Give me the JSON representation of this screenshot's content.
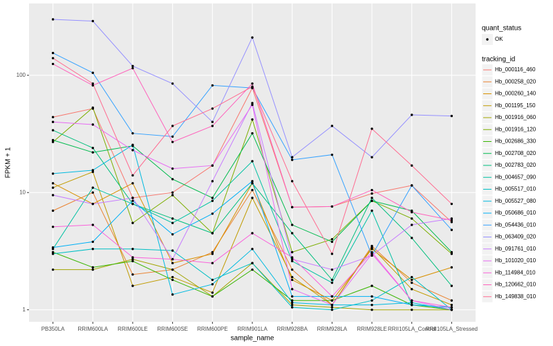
{
  "chart_data": {
    "type": "line",
    "x_label": "sample_name",
    "y_label": "FPKM + 1",
    "categories": [
      "PB350LA",
      "RRIM600LA",
      "RRIM600LE",
      "RRIM600SE",
      "RRIM600PE",
      "RRIM901LA",
      "RRIM928BA",
      "RRIM928LA",
      "RRIM928LE",
      "RRII105LA_Control",
      "RRII105LA_Stressed"
    ],
    "log_y": true,
    "ylim": [
      0.79,
      410
    ],
    "yticks": [
      1,
      10,
      100
    ],
    "grid": true,
    "shape_legend": {
      "title": "quant_status",
      "labels": [
        "OK"
      ]
    },
    "legend_title": "tracking_id",
    "series": [
      {
        "name": "Hb_000116_460",
        "color": "#F8766D",
        "values": [
          44,
          52,
          9,
          10,
          17,
          78,
          7.5,
          7.6,
          9.8,
          11.5,
          5.6
        ]
      },
      {
        "name": "Hb_000258_020",
        "color": "#EA8331",
        "values": [
          7,
          10,
          2,
          2.2,
          3.1,
          10.5,
          2.2,
          1.1,
          3.5,
          1.7,
          1.2
        ]
      },
      {
        "name": "Hb_000260_140",
        "color": "#D89000",
        "values": [
          12,
          8,
          12,
          2.5,
          3,
          12,
          1.8,
          1.2,
          3.3,
          1.8,
          2.3
        ]
      },
      {
        "name": "Hb_001195_150",
        "color": "#C09B00",
        "values": [
          11,
          15,
          1.6,
          1.9,
          1.4,
          9,
          1.9,
          1.1,
          3.4,
          1.5,
          1.1
        ]
      },
      {
        "name": "Hb_001916_060",
        "color": "#A3A500",
        "values": [
          2.2,
          2.2,
          2.7,
          2.2,
          1.3,
          2.5,
          1.1,
          1.05,
          1,
          1,
          1
        ]
      },
      {
        "name": "Hb_001916_120",
        "color": "#7CAE00",
        "values": [
          27,
          53,
          5.5,
          9.5,
          4.5,
          42,
          3.1,
          4,
          8.5,
          6,
          3
        ]
      },
      {
        "name": "Hb_002686_330",
        "color": "#39B600",
        "values": [
          3.1,
          2.3,
          2.6,
          1.8,
          1.3,
          2.2,
          1.2,
          1.2,
          1.6,
          1.1,
          1
        ]
      },
      {
        "name": "Hb_002708_020",
        "color": "#00BB4E",
        "values": [
          28,
          22,
          25,
          13,
          9,
          32,
          5.3,
          3.8,
          8.5,
          7,
          3.1
        ]
      },
      {
        "name": "Hb_002783_020",
        "color": "#00BF7D",
        "values": [
          34,
          24,
          8,
          6,
          4.5,
          12,
          4.5,
          1.8,
          9,
          4.1,
          1.6
        ]
      },
      {
        "name": "Hb_004657_090",
        "color": "#00C1A3",
        "values": [
          3.3,
          11,
          8,
          5.5,
          8.5,
          18.5,
          2.6,
          1.7,
          7,
          1.1,
          1.05
        ]
      },
      {
        "name": "Hb_005517_010",
        "color": "#00BFC4",
        "values": [
          3,
          3.3,
          3.3,
          3.2,
          1.8,
          2.5,
          1.05,
          1,
          1.2,
          1.9,
          1
        ]
      },
      {
        "name": "Hb_005527_080",
        "color": "#00BAE0",
        "values": [
          14.5,
          15.5,
          25.5,
          1.35,
          1.65,
          3.3,
          1.15,
          1.1,
          1.1,
          1.15,
          1
        ]
      },
      {
        "name": "Hb_050686_010",
        "color": "#00B0F6",
        "values": [
          3.4,
          3.8,
          8.5,
          4.4,
          6.6,
          12.5,
          1.3,
          1.3,
          1.3,
          1.1,
          1.05
        ]
      },
      {
        "name": "Hb_054436_010",
        "color": "#35A2FF",
        "values": [
          155,
          105,
          32,
          30,
          82,
          78,
          19,
          21,
          2.9,
          11.5,
          4.8
        ]
      },
      {
        "name": "Hb_063409_020",
        "color": "#9590FF",
        "values": [
          300,
          290,
          120,
          85,
          40,
          210,
          20,
          37,
          20,
          46,
          45
        ]
      },
      {
        "name": "Hb_091761_010",
        "color": "#C77CFF",
        "values": [
          9.5,
          8,
          9,
          2.7,
          12.5,
          58,
          2.7,
          2.2,
          2.9,
          5.3,
          6
        ]
      },
      {
        "name": "Hb_101020_010",
        "color": "#E76BF3",
        "values": [
          40,
          38,
          23,
          16,
          17,
          56,
          1.5,
          1.1,
          3,
          1.2,
          1
        ]
      },
      {
        "name": "Hb_114984_010",
        "color": "#FA62DB",
        "values": [
          5.1,
          5.3,
          2.8,
          2.7,
          2.5,
          4.5,
          2.8,
          1.3,
          3.1,
          1.2,
          1.05
        ]
      },
      {
        "name": "Hb_120662_010",
        "color": "#FF62BC",
        "values": [
          125,
          82,
          115,
          27,
          37,
          85,
          7.5,
          7.6,
          10.5,
          6.8,
          5.8
        ]
      },
      {
        "name": "Hb_149838_010",
        "color": "#FF6C91",
        "values": [
          140,
          85,
          14,
          37,
          52,
          80,
          12.5,
          3,
          35,
          17,
          8
        ]
      }
    ]
  }
}
